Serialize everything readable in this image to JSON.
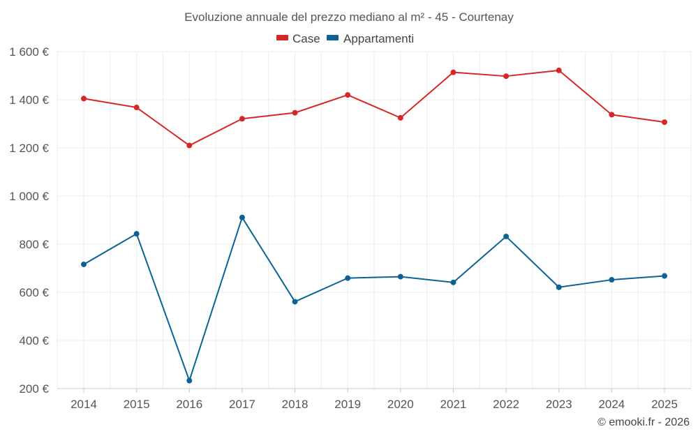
{
  "chart_data": {
    "type": "line",
    "title": "Evoluzione annuale del prezzo mediano al m² - 45 - Courtenay",
    "categories": [
      "2014",
      "2015",
      "2016",
      "2017",
      "2018",
      "2019",
      "2020",
      "2021",
      "2022",
      "2023",
      "2024",
      "2025"
    ],
    "series": [
      {
        "name": "Case",
        "color": "#d62728",
        "values": [
          1405,
          1368,
          1210,
          1321,
          1346,
          1420,
          1325,
          1514,
          1498,
          1522,
          1338,
          1307
        ]
      },
      {
        "name": "Appartamenti",
        "color": "#0b6394",
        "values": [
          716,
          843,
          233,
          911,
          561,
          659,
          665,
          641,
          832,
          621,
          652,
          668
        ]
      }
    ],
    "ylim": [
      200,
      1600
    ],
    "yticks": [
      200,
      400,
      600,
      800,
      1000,
      1200,
      1400,
      1600
    ],
    "ytick_labels": [
      "200 €",
      "400 €",
      "600 €",
      "800 €",
      "1 000 €",
      "1 200 €",
      "1 400 €",
      "1 600 €"
    ],
    "grid": true,
    "legend_position": "top-center",
    "credit": "© emooki.fr - 2026"
  }
}
